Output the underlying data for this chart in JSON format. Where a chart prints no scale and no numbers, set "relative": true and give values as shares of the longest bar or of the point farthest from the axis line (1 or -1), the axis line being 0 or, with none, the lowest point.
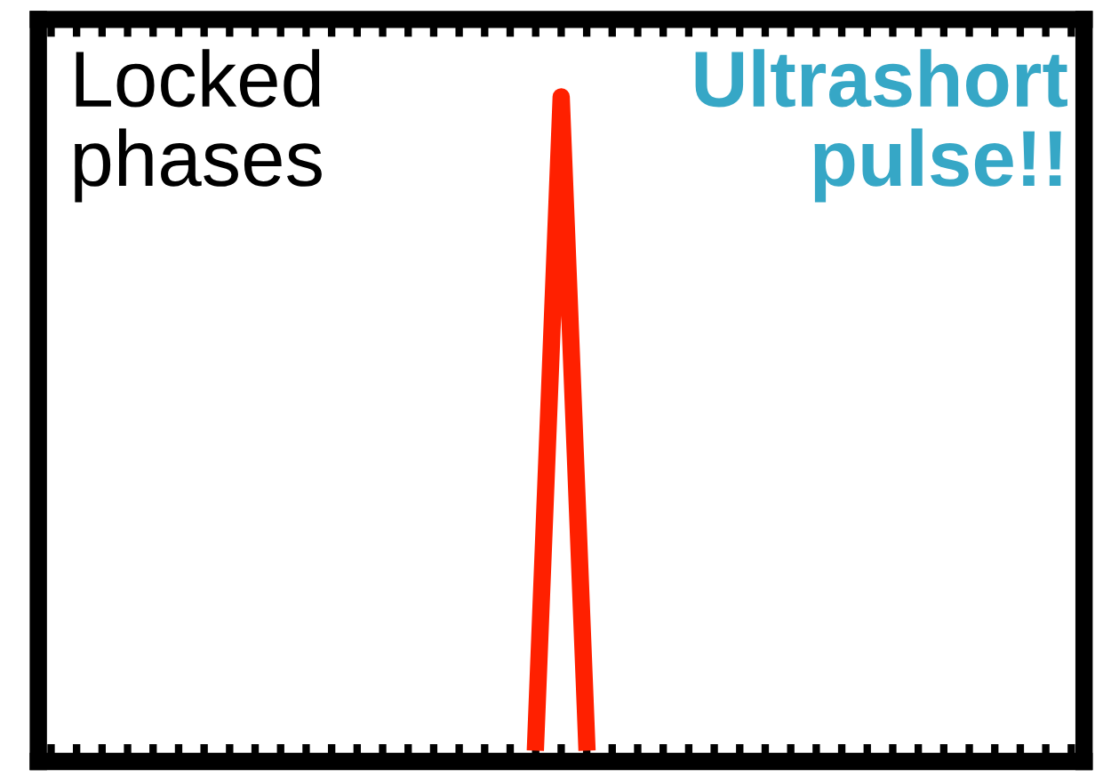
{
  "chart_data": {
    "type": "line",
    "relative": true,
    "grid": false,
    "legend": false,
    "categories": [
      null,
      null,
      null,
      null,
      null,
      null,
      null,
      null,
      null,
      null,
      null,
      null,
      null,
      null,
      null,
      null,
      null,
      null,
      null,
      null,
      null,
      null,
      null,
      null,
      null,
      null,
      null,
      null,
      null,
      null,
      null,
      null,
      null,
      null,
      null,
      null,
      null,
      null,
      null,
      null,
      null
    ],
    "series": [
      {
        "color": "#ff2000",
        "values": [
          null,
          null,
          null,
          null,
          null,
          null,
          null,
          null,
          null,
          null,
          null,
          null,
          null,
          null,
          null,
          null,
          null,
          null,
          null,
          0,
          1,
          0,
          null,
          null,
          null,
          null,
          null,
          null,
          null,
          null,
          null,
          null,
          null,
          null,
          null,
          null,
          null,
          null,
          null,
          null,
          null
        ]
      }
    ],
    "annotations": [
      "Locked\nphases",
      "Ultrashort\npulse!!"
    ]
  }
}
